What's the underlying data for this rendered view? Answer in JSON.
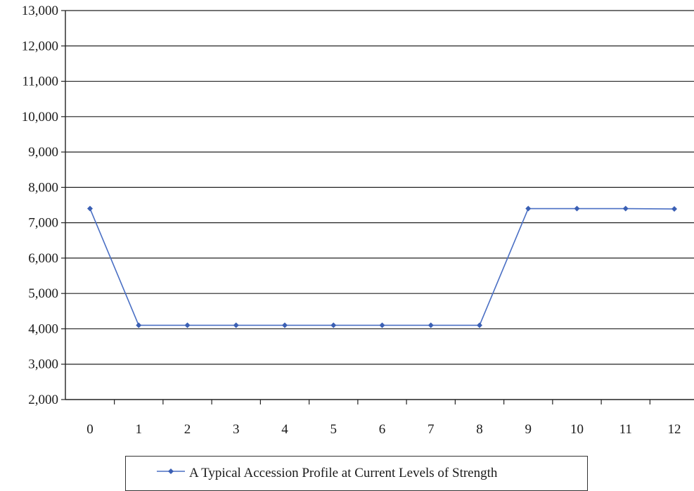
{
  "chart_data": {
    "type": "line",
    "title": "",
    "xlabel": "",
    "ylabel": "",
    "x": [
      0,
      1,
      2,
      3,
      4,
      5,
      6,
      7,
      8,
      9,
      10,
      11,
      12
    ],
    "x_tick_labels": [
      "0",
      "1",
      "2",
      "3",
      "4",
      "5",
      "6",
      "7",
      "8",
      "9",
      "10",
      "11",
      "12"
    ],
    "y_tick_labels": [
      "2,000",
      "3,000",
      "4,000",
      "5,000",
      "6,000",
      "7,000",
      "8,000",
      "9,000",
      "10,000",
      "11,000",
      "12,000",
      "13,000"
    ],
    "y_ticks": [
      2000,
      3000,
      4000,
      5000,
      6000,
      7000,
      8000,
      9000,
      10000,
      11000,
      12000,
      13000
    ],
    "ylim": [
      2000,
      13000
    ],
    "grid": "horizontal",
    "legend_position": "bottom",
    "series": [
      {
        "name": "A Typical Accession Profile at Current Levels of Strength",
        "values": [
          7400,
          4100,
          4100,
          4100,
          4100,
          4100,
          4100,
          4100,
          4100,
          7400,
          7400,
          7400,
          7390
        ],
        "color": "#4a6fc4",
        "marker": "diamond"
      }
    ]
  }
}
